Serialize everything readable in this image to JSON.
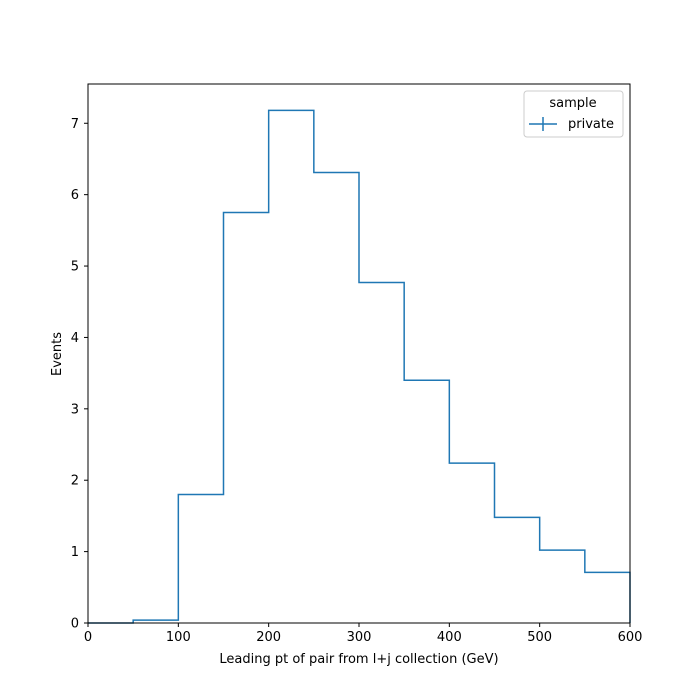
{
  "chart_data": {
    "type": "histogram",
    "xlabel": "Leading pt of pair from l+j collection (GeV)",
    "ylabel": "Events",
    "xlim": [
      0,
      600
    ],
    "ylim": [
      0,
      7.55
    ],
    "x_ticks": [
      "0",
      "100",
      "200",
      "300",
      "400",
      "500",
      "600"
    ],
    "y_ticks": [
      "0",
      "1",
      "2",
      "3",
      "4",
      "5",
      "6",
      "7"
    ],
    "bin_edges": [
      0,
      50,
      100,
      150,
      200,
      250,
      300,
      350,
      400,
      450,
      500,
      550,
      600
    ],
    "grid": false,
    "legend": {
      "title": "sample",
      "placement": "top-right"
    },
    "series": [
      {
        "name": "private",
        "color": "#1f77b4",
        "values": [
          0.0,
          0.04,
          1.8,
          5.75,
          7.18,
          6.31,
          4.77,
          3.4,
          2.24,
          1.48,
          1.02,
          0.71
        ]
      }
    ]
  }
}
